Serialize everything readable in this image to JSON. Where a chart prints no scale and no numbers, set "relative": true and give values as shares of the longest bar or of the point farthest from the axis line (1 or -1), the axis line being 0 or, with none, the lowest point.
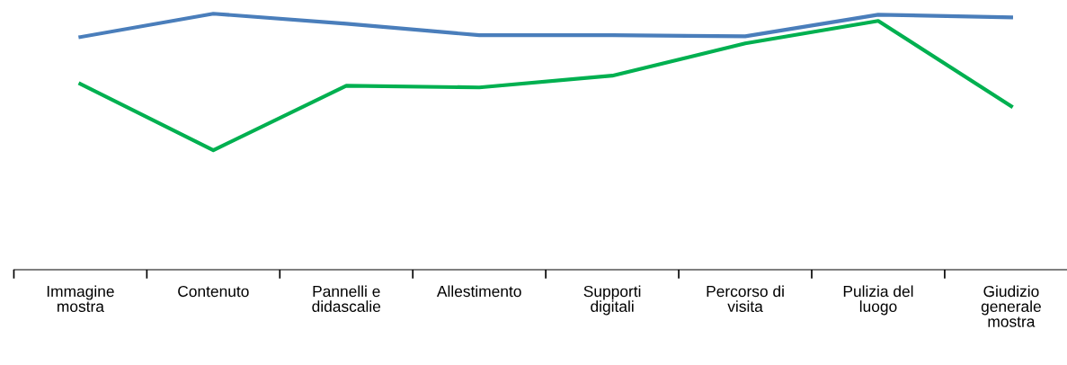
{
  "chart_data": {
    "type": "line",
    "relative": true,
    "categories": [
      "Immagine\nmostra",
      "Contenuto",
      "Pannelli e\ndidascalie",
      "Allestimento",
      "Supporti\ndigitali",
      "Percorso di\nvisita",
      "Pulizia del\nluogo",
      "Giudizio\ngenerale\nmostra"
    ],
    "series": [
      {
        "color": "#4a7ebb",
        "values": [
          0.909,
          1.0,
          0.961,
          0.916,
          0.916,
          0.912,
          0.996,
          0.986
        ]
      },
      {
        "color": "#00b050",
        "values": [
          0.726,
          0.467,
          0.719,
          0.712,
          0.758,
          0.884,
          0.972,
          0.639
        ]
      }
    ],
    "grid": false,
    "legend": false,
    "marker": "none",
    "line_style": "solid"
  }
}
